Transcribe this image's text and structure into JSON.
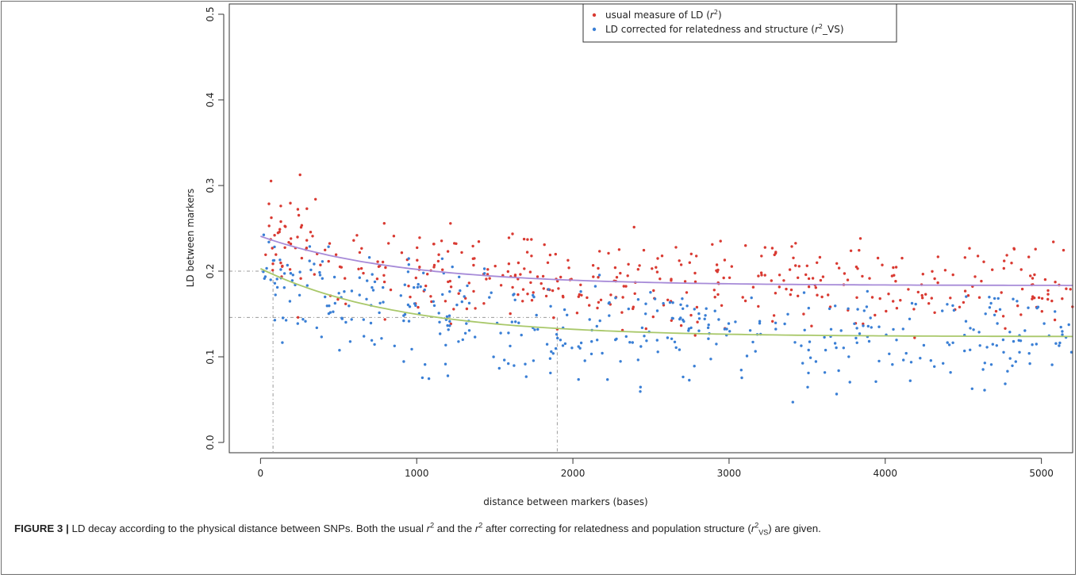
{
  "chart_data": {
    "type": "scatter",
    "xlabel": "distance between markers (bases)",
    "ylabel": "LD between markers",
    "xlim": [
      -200,
      5200
    ],
    "ylim": [
      -0.012,
      0.512
    ],
    "xticks": [
      0,
      1000,
      2000,
      3000,
      4000,
      5000
    ],
    "xtick_labels": [
      "0",
      "1000",
      "2000",
      "3000",
      "4000",
      "5000"
    ],
    "yticks": [
      0.0,
      0.1,
      0.2,
      0.3,
      0.4,
      0.5
    ],
    "ytick_labels": [
      "0.0",
      "0.1",
      "0.2",
      "0.3",
      "0.4",
      "0.5"
    ],
    "legend_position": "top-right",
    "legend": [
      {
        "text": "usual measure of LD (",
        "sup": "2",
        "italic": "r",
        "tail": ")",
        "color": "#d93a32"
      },
      {
        "text": "LD corrected for relatedness and structure (",
        "sup": "2",
        "italic": "r",
        "tail": "_VS)",
        "color": "#3a7fd5"
      }
    ],
    "series": [
      {
        "color": "#d93a32",
        "curve_color": "#a78bd8",
        "curve": {
          "a": 0.1832,
          "b": 0.0575,
          "decay": 900
        },
        "point_count": 430,
        "spread": 0.024,
        "seed": 11
      },
      {
        "color": "#3a7fd5",
        "curve_color": "#a9c86a",
        "curve": {
          "a": 0.1235,
          "b": 0.0795,
          "decay": 900
        },
        "point_count": 430,
        "spread": 0.026,
        "seed": 29
      }
    ],
    "reference_lines": [
      {
        "x": 80,
        "y": 0.2
      },
      {
        "x": 1900,
        "y": 0.146
      }
    ]
  },
  "caption": {
    "label": "FIGURE 3 |",
    "part1": " LD decay according to the physical distance between SNPs. Both the usual ",
    "r1": "r",
    "sup1": "2",
    "part2": " and the ",
    "r2": "r",
    "sup2": "2",
    "part3": " after correcting for relatedness and population structure (",
    "r3": "r",
    "sup3": "2",
    "sub3": "VS",
    "part4": ") are given."
  }
}
